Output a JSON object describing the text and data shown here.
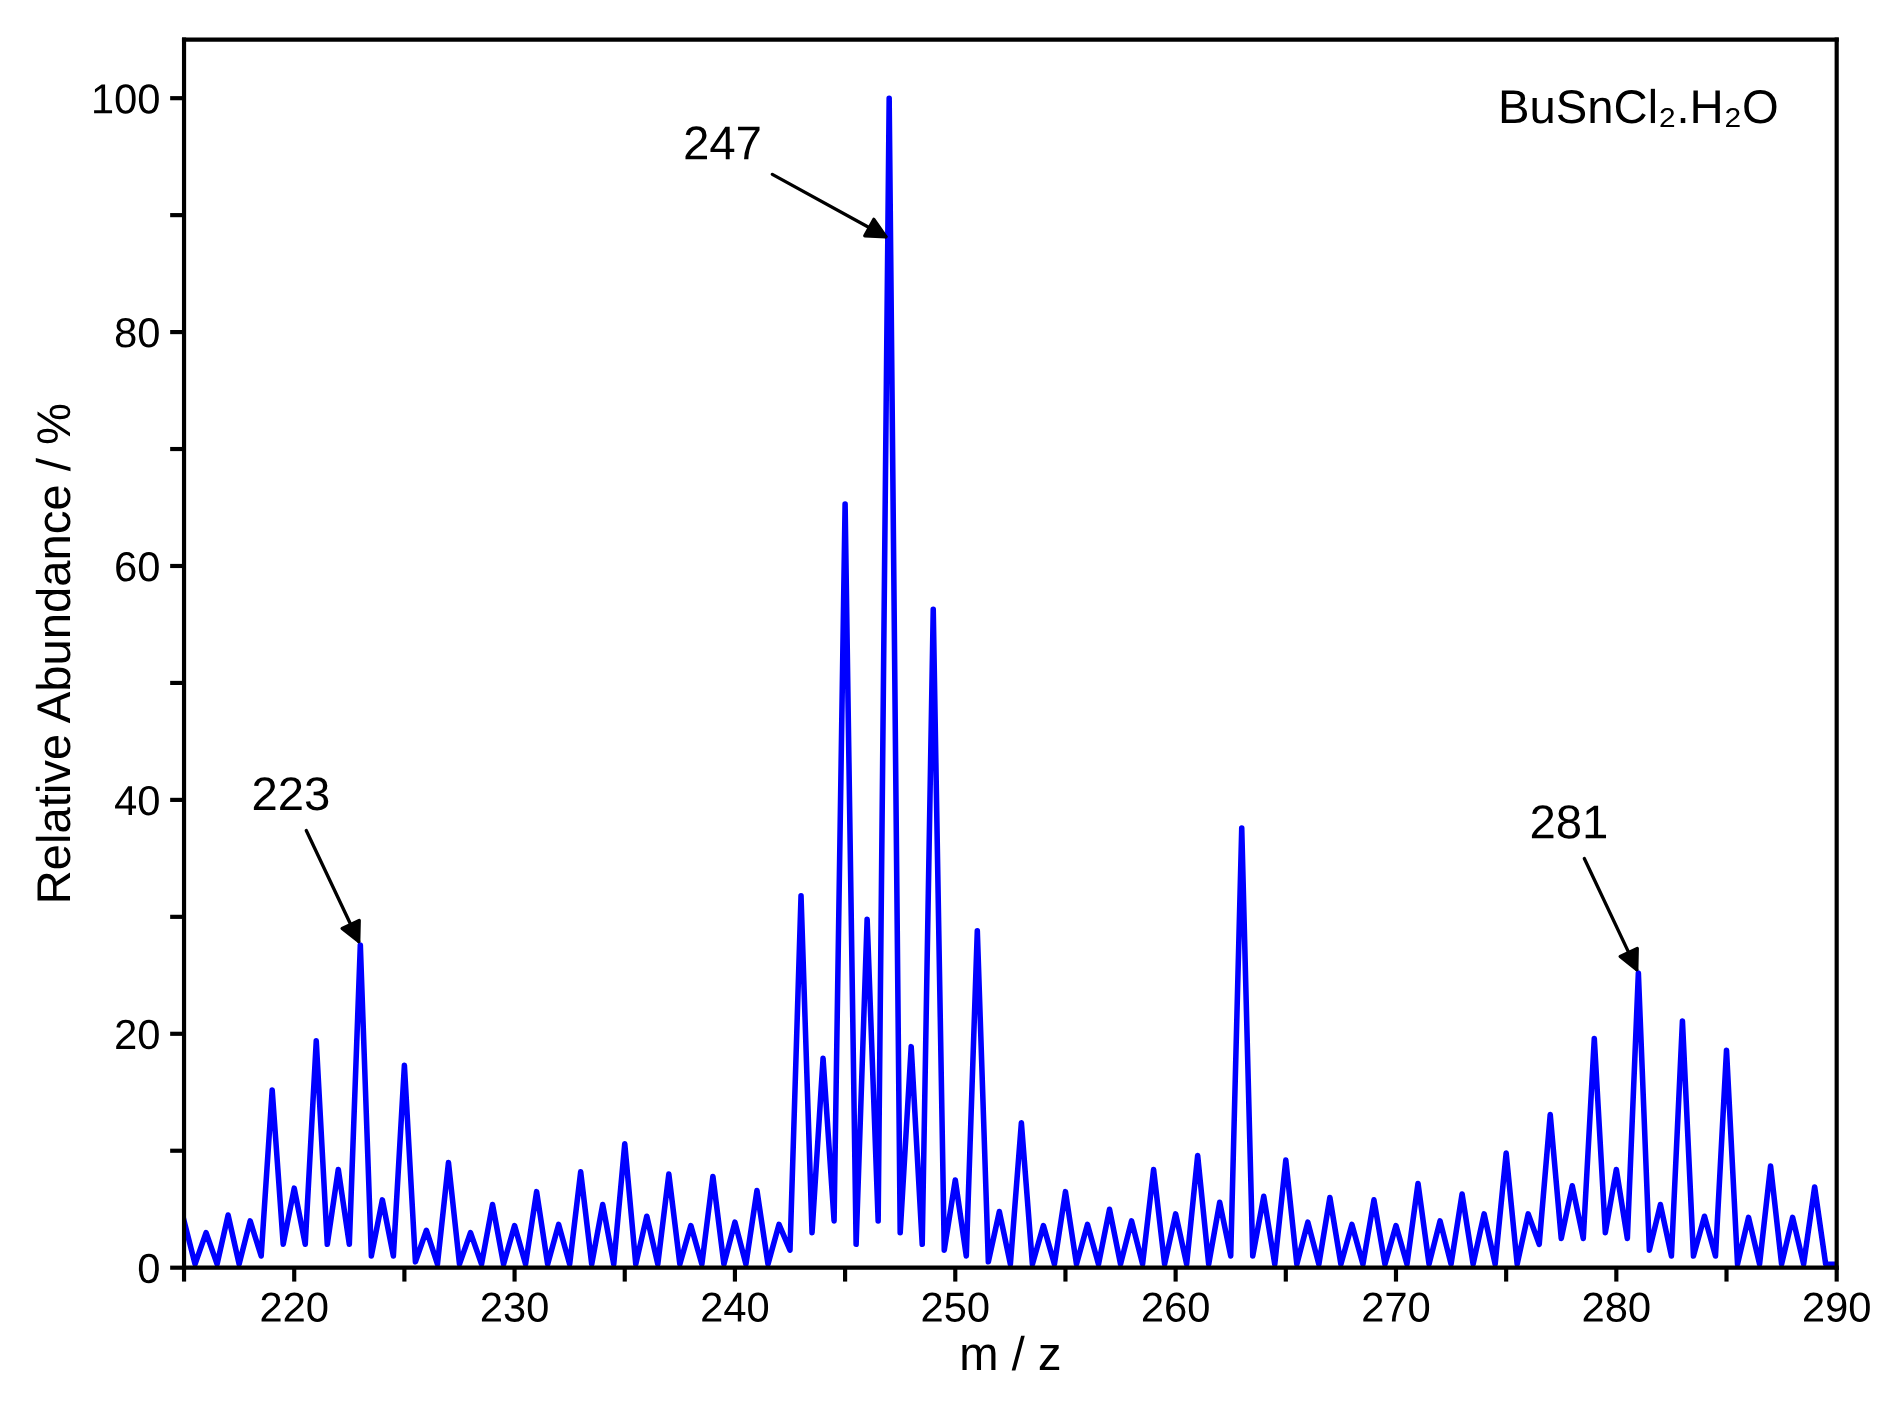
{
  "chart_data": {
    "type": "line",
    "xlabel": "m / z",
    "ylabel": "Relative Abundance / %",
    "x": [
      215,
      215.5,
      216,
      216.5,
      217,
      217.5,
      218,
      218.5,
      219,
      219.5,
      220,
      220.5,
      221,
      221.5,
      222,
      222.5,
      223,
      223.5,
      224,
      224.5,
      225,
      225.5,
      226,
      226.5,
      227,
      227.5,
      228,
      228.5,
      229,
      229.5,
      230,
      230.5,
      231,
      231.5,
      232,
      232.5,
      233,
      233.5,
      234,
      234.5,
      235,
      235.5,
      236,
      236.5,
      237,
      237.5,
      238,
      238.5,
      239,
      239.5,
      240,
      240.5,
      241,
      241.5,
      242,
      242.5,
      243,
      243.5,
      244,
      244.5,
      245,
      245.5,
      246,
      246.5,
      247,
      247.5,
      248,
      248.5,
      249,
      249.5,
      250,
      250.5,
      251,
      251.5,
      252,
      252.5,
      253,
      253.5,
      254,
      254.5,
      255,
      255.5,
      256,
      256.5,
      257,
      257.5,
      258,
      258.5,
      259,
      259.5,
      260,
      260.5,
      261,
      261.5,
      262,
      262.5,
      263,
      263.5,
      264,
      264.5,
      265,
      265.5,
      266,
      266.5,
      267,
      267.5,
      268,
      268.5,
      269,
      269.5,
      270,
      270.5,
      271,
      271.5,
      272,
      272.5,
      273,
      273.5,
      274,
      274.5,
      275,
      275.5,
      276,
      276.5,
      277,
      277.5,
      278,
      278.5,
      279,
      279.5,
      280,
      280.5,
      281,
      281.5,
      282,
      282.5,
      283,
      283.5,
      284,
      284.5,
      285,
      285.5,
      286,
      286.5,
      287,
      287.5,
      288,
      288.5,
      289,
      289.5,
      290
    ],
    "series": [
      {
        "color": "#0000ff",
        "values": [
          4,
          0.3,
          3,
          0.3,
          4.5,
          0.3,
          4,
          1,
          15.2,
          2,
          6.8,
          2,
          19.4,
          2,
          8.4,
          2,
          27.6,
          1,
          5.8,
          1,
          17.3,
          0.5,
          3.2,
          0.3,
          9,
          0.3,
          3,
          0.3,
          5.4,
          0.3,
          3.6,
          0.3,
          6.5,
          0.3,
          3.7,
          0.3,
          8.2,
          0.3,
          5.4,
          0.3,
          10.6,
          0.3,
          4.4,
          0.3,
          8,
          0.3,
          3.6,
          0.3,
          7.8,
          0.3,
          3.9,
          0.3,
          6.6,
          0.3,
          3.7,
          1.5,
          31.8,
          3,
          17.9,
          4,
          65.3,
          2,
          29.8,
          4,
          100,
          3,
          18.9,
          2,
          56.3,
          1.5,
          7.5,
          1,
          28.8,
          0.5,
          4.8,
          0.3,
          12.4,
          0.3,
          3.6,
          0.3,
          6.5,
          0.3,
          3.7,
          0.3,
          5,
          0.3,
          4,
          0.3,
          8.4,
          0.3,
          4.6,
          0.3,
          9.6,
          0.3,
          5.6,
          1,
          37.6,
          1,
          6.1,
          0.3,
          9.2,
          0.3,
          3.9,
          0.3,
          6,
          0.3,
          3.7,
          0.3,
          5.8,
          0.3,
          3.6,
          0.3,
          7.2,
          0.3,
          4,
          0.3,
          6.3,
          0.3,
          4.6,
          0.3,
          9.8,
          0.3,
          4.6,
          2,
          13.1,
          2.5,
          7,
          2.5,
          19.6,
          3,
          8.4,
          2.5,
          25.2,
          1.5,
          5.4,
          1,
          21.1,
          1,
          4.4,
          1,
          18.6,
          0.3,
          4.3,
          0.3,
          8.7,
          0.3,
          4.3,
          0.3,
          6.9,
          0.3,
          0.3
        ]
      }
    ],
    "xlim": [
      215,
      290
    ],
    "xticks": [
      {
        "value": 215,
        "label": null
      },
      220,
      {
        "value": 225,
        "label": null
      },
      230,
      {
        "value": 235,
        "label": null
      },
      240,
      {
        "value": 245,
        "label": null
      },
      250,
      {
        "value": 255,
        "label": null
      },
      260,
      {
        "value": 265,
        "label": null
      },
      270,
      {
        "value": 275,
        "label": null
      },
      280,
      {
        "value": 285,
        "label": null
      },
      290
    ],
    "ylim": [
      0,
      105
    ],
    "yticks": [
      0,
      {
        "value": 10,
        "label": null
      },
      20,
      {
        "value": 30,
        "label": null
      },
      40,
      {
        "value": 50,
        "label": null
      },
      60,
      {
        "value": 70,
        "label": null
      },
      80,
      {
        "value": 90,
        "label": null
      },
      100
    ],
    "grid": false,
    "marker": "none",
    "line_style": "solid",
    "annotations": [
      {
        "text": "223",
        "x": 223,
        "y": 27.6
      },
      {
        "text": "247",
        "x": 247,
        "y": 88
      },
      {
        "text": "281",
        "x": 281,
        "y": 25.2
      },
      "BuSnCl₂.H₂O"
    ]
  }
}
